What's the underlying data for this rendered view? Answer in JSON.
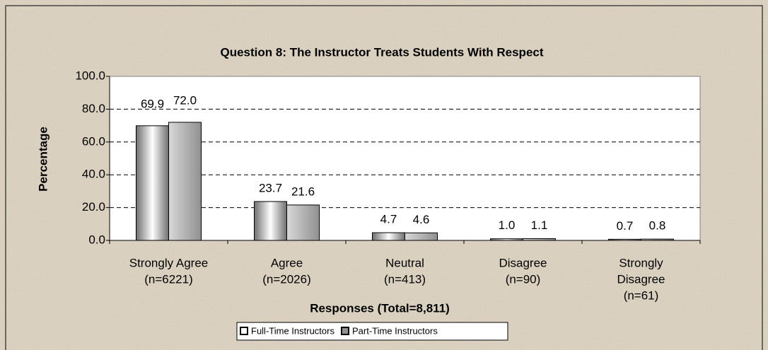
{
  "chart_data": {
    "type": "bar",
    "title": "Question 8:  The Instructor Treats Students With Respect",
    "x_label": "Responses (Total=8,811)",
    "y_label": "Percentage",
    "categories": [
      [
        "Strongly Agree",
        "(n=6221)"
      ],
      [
        "Agree",
        "(n=2026)"
      ],
      [
        "Neutral",
        "(n=413)"
      ],
      [
        "Disagree",
        "(n=90)"
      ],
      [
        "Strongly",
        "Disagree",
        "(n=61)"
      ]
    ],
    "series": [
      {
        "name": "Full-Time Instructors",
        "color": "#6e6e6e",
        "values": [
          69.9,
          23.7,
          4.7,
          1.0,
          0.7
        ],
        "value_labels": [
          "69.9",
          "23.7",
          "4.7",
          "1.0",
          "0.7"
        ]
      },
      {
        "name": "Part-Time Instructors",
        "color": "#909090",
        "values": [
          72.0,
          21.6,
          4.6,
          1.1,
          0.8
        ],
        "value_labels": [
          "72.0",
          "21.6",
          "4.6",
          "1.1",
          "0.8"
        ]
      }
    ],
    "ylim": [
      0,
      100
    ],
    "yticks": [
      {
        "value": 0,
        "label": "0.0"
      },
      {
        "value": 20,
        "label": "20.0"
      },
      {
        "value": 40,
        "label": "40.0"
      },
      {
        "value": 60,
        "label": "60.0"
      },
      {
        "value": 80,
        "label": "80.0"
      },
      {
        "value": 100,
        "label": "100.0"
      }
    ],
    "grid": true,
    "legend": "bottom"
  }
}
